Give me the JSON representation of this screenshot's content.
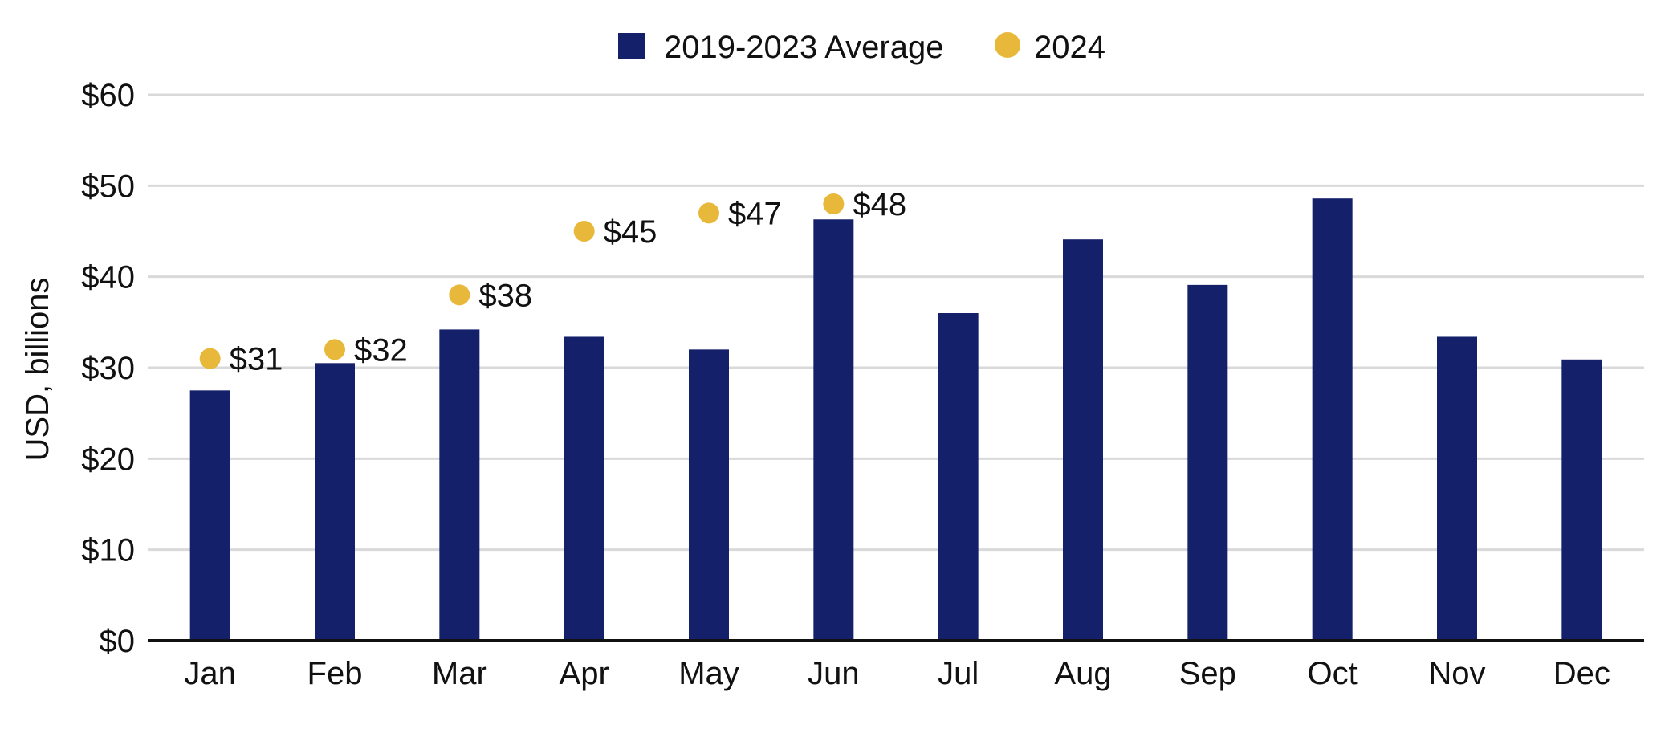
{
  "chart_data": {
    "type": "bar",
    "title": "",
    "xlabel": "",
    "ylabel": "USD, billions",
    "ylim": [
      0,
      60
    ],
    "y_ticks": [
      0,
      10,
      20,
      30,
      40,
      50,
      60
    ],
    "y_tick_labels": [
      "$0",
      "$10",
      "$20",
      "$30",
      "$40",
      "$50",
      "$60"
    ],
    "grid": true,
    "legend_position": "top-center",
    "categories": [
      "Jan",
      "Feb",
      "Mar",
      "Apr",
      "May",
      "Jun",
      "Jul",
      "Aug",
      "Sep",
      "Oct",
      "Nov",
      "Dec"
    ],
    "series": [
      {
        "name": "2019-2023 Average",
        "kind": "bar",
        "color": "#15206a",
        "values": [
          27.5,
          30.5,
          34.2,
          33.4,
          32.0,
          46.3,
          36.0,
          44.1,
          39.1,
          48.6,
          33.4,
          30.9
        ]
      },
      {
        "name": "2024",
        "kind": "point",
        "color": "#e8b83a",
        "values": [
          31,
          32,
          38,
          45,
          47,
          48,
          null,
          null,
          null,
          null,
          null,
          null
        ],
        "labels": [
          "$31",
          "$32",
          "$38",
          "$45",
          "$47",
          "$48",
          null,
          null,
          null,
          null,
          null,
          null
        ]
      }
    ]
  }
}
